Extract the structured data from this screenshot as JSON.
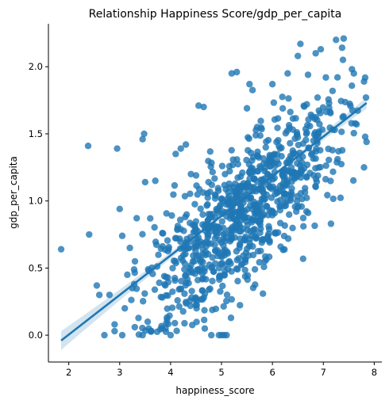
{
  "chart_data": {
    "type": "scatter",
    "title": "Relationship Happiness Score/gdp_per_capita",
    "xlabel": "happiness_score",
    "ylabel": "gdp_per_capita",
    "xlim": [
      1.6,
      8.15
    ],
    "ylim": [
      -0.2,
      2.32
    ],
    "xticks": [
      2,
      3,
      4,
      5,
      6,
      7,
      8
    ],
    "xtick_labels": [
      "2",
      "3",
      "4",
      "5",
      "6",
      "7",
      "8"
    ],
    "yticks": [
      0.0,
      0.5,
      1.0,
      1.5,
      2.0
    ],
    "ytick_labels": [
      "0.0",
      "0.5",
      "1.0",
      "1.5",
      "2.0"
    ],
    "grid": false,
    "point_color": "#1f77b4",
    "line_color": "#1f77b4",
    "ci_color": "#1f77b4",
    "regression": {
      "x": [
        1.85,
        7.85
      ],
      "y": [
        -0.04,
        1.73
      ],
      "ci_halfwidth_edge": 0.07,
      "ci_halfwidth_center": 0.015,
      "x_center": 5.4
    },
    "points_explicit": [
      [
        1.85,
        0.64
      ],
      [
        2.38,
        1.41
      ],
      [
        2.4,
        0.75
      ],
      [
        2.55,
        0.37
      ],
      [
        2.6,
        0.3
      ],
      [
        2.7,
        0.0
      ],
      [
        2.8,
        0.3
      ],
      [
        2.9,
        0.08
      ],
      [
        2.9,
        0.03
      ],
      [
        2.95,
        1.39
      ],
      [
        3.0,
        0.94
      ],
      [
        3.05,
        0.74
      ],
      [
        3.05,
        0.0
      ],
      [
        3.1,
        0.2
      ],
      [
        3.15,
        0.45
      ],
      [
        3.2,
        0.65
      ],
      [
        3.25,
        0.35
      ],
      [
        3.3,
        0.55
      ],
      [
        3.45,
        1.46
      ],
      [
        3.48,
        1.5
      ],
      [
        3.5,
        1.14
      ],
      [
        3.45,
        0.0
      ],
      [
        3.55,
        0.1
      ],
      [
        3.6,
        0.87
      ],
      [
        3.7,
        1.15
      ],
      [
        3.9,
        0.05
      ],
      [
        4.0,
        0.0
      ],
      [
        4.1,
        1.35
      ],
      [
        4.2,
        1.39
      ],
      [
        4.3,
        1.42
      ],
      [
        4.4,
        1.2
      ],
      [
        4.5,
        1.19
      ],
      [
        4.55,
        1.71
      ],
      [
        4.65,
        1.7
      ],
      [
        4.8,
        0.0
      ],
      [
        4.95,
        0.0
      ],
      [
        5.0,
        0.0
      ],
      [
        5.05,
        0.0
      ],
      [
        5.1,
        0.0
      ],
      [
        5.2,
        1.95
      ],
      [
        5.3,
        1.96
      ],
      [
        5.5,
        1.69
      ],
      [
        5.55,
        1.87
      ],
      [
        5.7,
        1.55
      ],
      [
        5.85,
        0.55
      ],
      [
        6.0,
        1.87
      ],
      [
        6.3,
        1.95
      ],
      [
        6.5,
        2.08
      ],
      [
        6.55,
        2.17
      ],
      [
        6.7,
        1.94
      ],
      [
        6.85,
        2.1
      ],
      [
        6.95,
        2.13
      ],
      [
        7.05,
        1.92
      ],
      [
        7.15,
        0.83
      ],
      [
        7.25,
        2.2
      ],
      [
        7.4,
        2.21
      ],
      [
        7.6,
        1.95
      ],
      [
        7.8,
        1.89
      ],
      [
        7.8,
        1.25
      ],
      [
        7.85,
        1.44
      ]
    ],
    "cloud_seed": 42,
    "cloud_count": 900,
    "cloud_x_range": [
      3.1,
      7.85
    ],
    "cloud_y_clip": [
      0.0,
      2.22
    ]
  }
}
